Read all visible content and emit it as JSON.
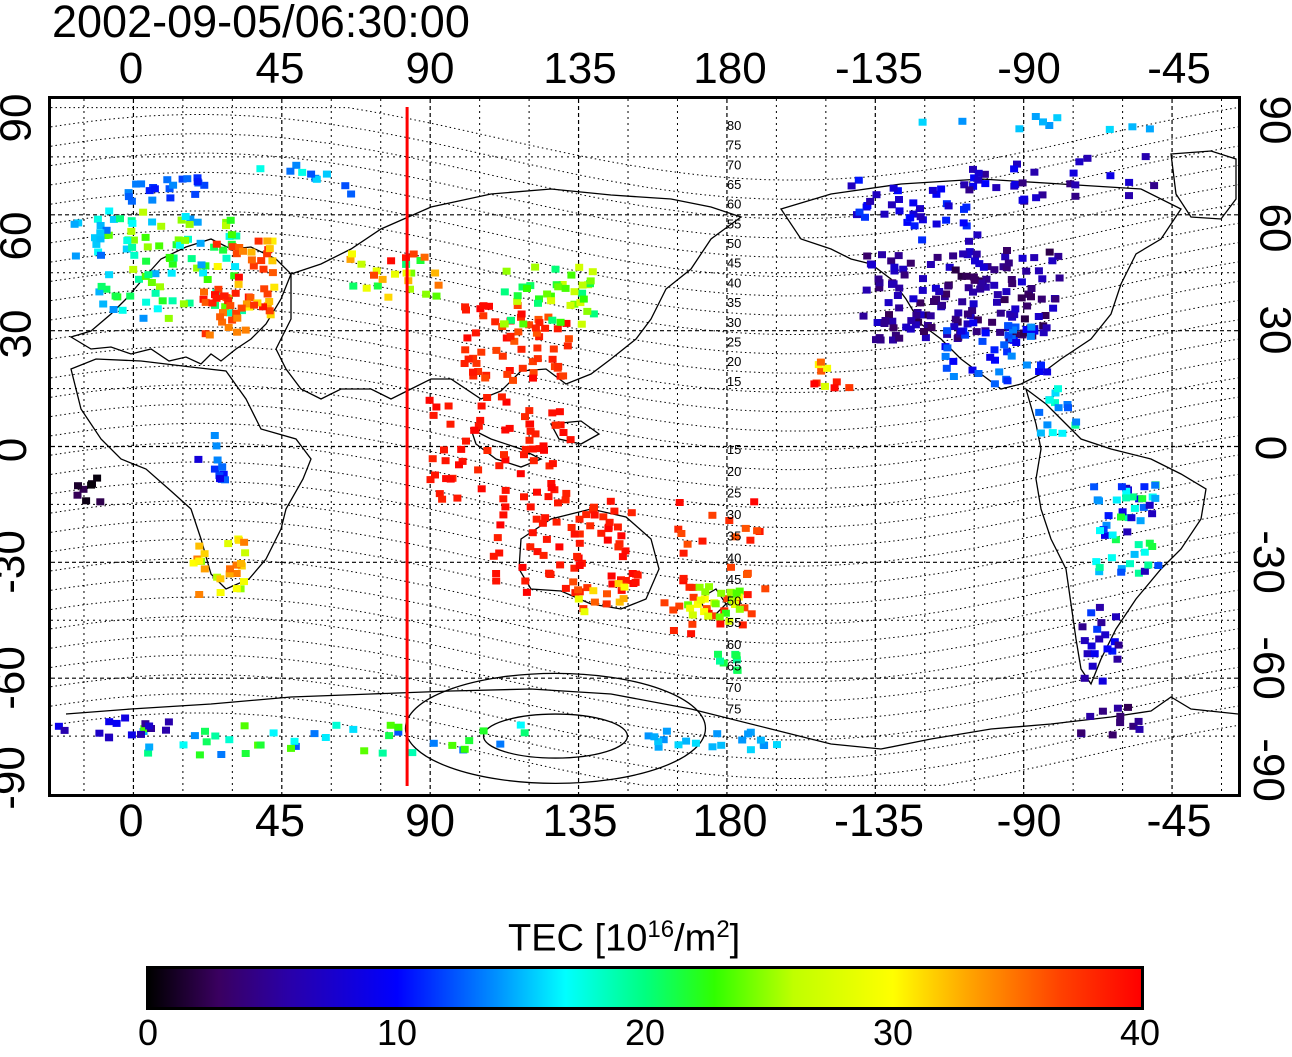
{
  "title": "2002-09-05/06:30:00",
  "map": {
    "projection": "equirectangular",
    "lon_range": [
      -25,
      335
    ],
    "lat_range": [
      -90,
      90
    ],
    "top_lon_ticks": [
      "0",
      "45",
      "90",
      "135",
      "180",
      "-135",
      "-90",
      "-45"
    ],
    "bottom_lon_ticks": [
      "0",
      "45",
      "90",
      "135",
      "180",
      "-135",
      "-90",
      "-45"
    ],
    "left_lat_ticks": [
      "90",
      "60",
      "30",
      "0",
      "-30",
      "-60",
      "-90"
    ],
    "right_lat_ticks": [
      "90",
      "60",
      "30",
      "0",
      "-30",
      "-60",
      "-90"
    ],
    "grid": "dotted 15° graticule",
    "marker_line_lon": 83,
    "marker_line_color": "#ff0000",
    "contour_labels_north": [
      "80",
      "75",
      "70",
      "65",
      "60",
      "55",
      "50",
      "45",
      "40",
      "35",
      "30",
      "25",
      "20",
      "15"
    ],
    "contour_labels_south": [
      "15",
      "20",
      "25",
      "30",
      "35",
      "40",
      "45",
      "50",
      "55",
      "60",
      "65",
      "70",
      "75"
    ]
  },
  "colorbar": {
    "title_main": "TEC  [10",
    "title_exp": "16",
    "title_unit": "/m",
    "title_unit_exp": "2",
    "title_end": "]",
    "min": 0,
    "max": 40,
    "ticks": [
      "0",
      "10",
      "20",
      "30",
      "40"
    ]
  }
}
